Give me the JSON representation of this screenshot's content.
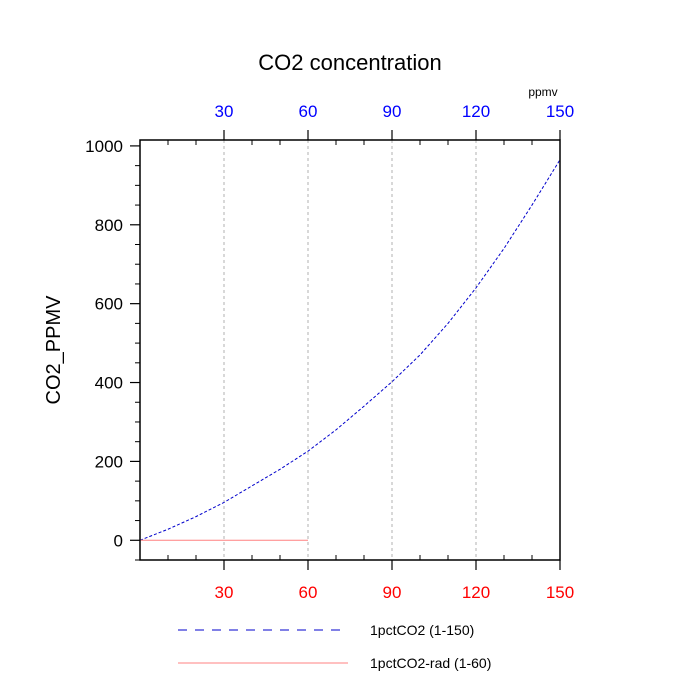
{
  "chart_data": {
    "type": "line",
    "title": "CO2 concentration",
    "ylabel": "CO2_PPMV",
    "xlabel": "",
    "top_axis_unit": "ppmv",
    "xlim": [
      0,
      150
    ],
    "ylim": [
      -50,
      1015
    ],
    "x_ticks": [
      30,
      60,
      90,
      120,
      150
    ],
    "x_tick_labels": [
      "30",
      "60",
      "90",
      "120",
      "150"
    ],
    "y_ticks": [
      0,
      200,
      400,
      600,
      800,
      1000
    ],
    "y_tick_labels": [
      "0",
      "200",
      "400",
      "600",
      "800",
      "1000"
    ],
    "y_minor_step": 50,
    "x_minor_step": 10,
    "grid": "vertical dashed at x ticks",
    "legend_position": "bottom",
    "colors": {
      "top_axis": "#0000ff",
      "bottom_axis": "#ff0000",
      "grid": "#b0b0b0"
    },
    "series": [
      {
        "name": "1pctCO2 (1-150)",
        "color": "#0000cc",
        "dash": "dashed",
        "x": [
          0,
          10,
          20,
          30,
          40,
          50,
          60,
          70,
          80,
          90,
          100,
          110,
          120,
          130,
          140,
          150
        ],
        "y": [
          0,
          28,
          60,
          96,
          138,
          180,
          226,
          280,
          340,
          402,
          470,
          550,
          640,
          740,
          850,
          965
        ]
      },
      {
        "name": "1pctCO2-rad (1-60)",
        "color": "#ff8080",
        "dash": "solid",
        "x": [
          0,
          60
        ],
        "y": [
          0,
          0
        ]
      }
    ]
  }
}
